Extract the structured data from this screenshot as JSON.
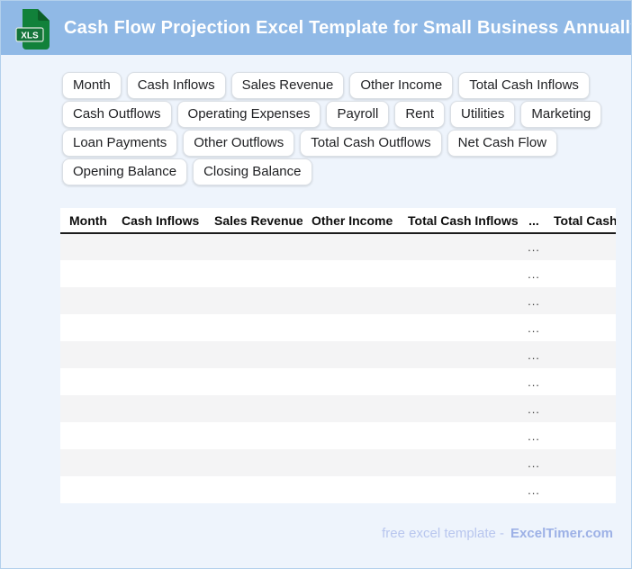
{
  "header": {
    "title": "Cash Flow Projection Excel Template for Small Business Annually",
    "icon_label": "XLS"
  },
  "chips": [
    "Month",
    "Cash Inflows",
    "Sales Revenue",
    "Other Income",
    "Total Cash Inflows",
    "Cash Outflows",
    "Operating Expenses",
    "Payroll",
    "Rent",
    "Utilities",
    "Marketing",
    "Loan Payments",
    "Other Outflows",
    "Total Cash Outflows",
    "Net Cash Flow",
    "Opening Balance",
    "Closing Balance"
  ],
  "table": {
    "columns": [
      "Month",
      "Cash Inflows",
      "Sales Revenue",
      "Other Income",
      "Total Cash Inflows",
      "...",
      "Total Cash Outflows"
    ],
    "ellipsis_column_index": 5,
    "rows": [
      [
        "",
        "",
        "",
        "",
        "",
        "...",
        ""
      ],
      [
        "",
        "",
        "",
        "",
        "",
        "...",
        ""
      ],
      [
        "",
        "",
        "",
        "",
        "",
        "...",
        ""
      ],
      [
        "",
        "",
        "",
        "",
        "",
        "...",
        ""
      ],
      [
        "",
        "",
        "",
        "",
        "",
        "...",
        ""
      ],
      [
        "",
        "",
        "",
        "",
        "",
        "...",
        ""
      ],
      [
        "",
        "",
        "",
        "",
        "",
        "...",
        ""
      ],
      [
        "",
        "",
        "",
        "",
        "",
        "...",
        ""
      ],
      [
        "",
        "",
        "",
        "",
        "",
        "...",
        ""
      ],
      [
        "",
        "",
        "",
        "",
        "",
        "...",
        ""
      ]
    ]
  },
  "footer": {
    "text": "free excel template -",
    "brand": "ExcelTimer.com"
  },
  "colors": {
    "header_bg": "#90b9e6",
    "page_bg": "#eef4fc",
    "icon_green": "#11813a",
    "icon_fold_green": "#0c5f28",
    "badge_green": "#15743a",
    "row_alt": "#f4f4f5",
    "footer_text": "#b8c6ee",
    "footer_brand": "#9db1e6"
  }
}
